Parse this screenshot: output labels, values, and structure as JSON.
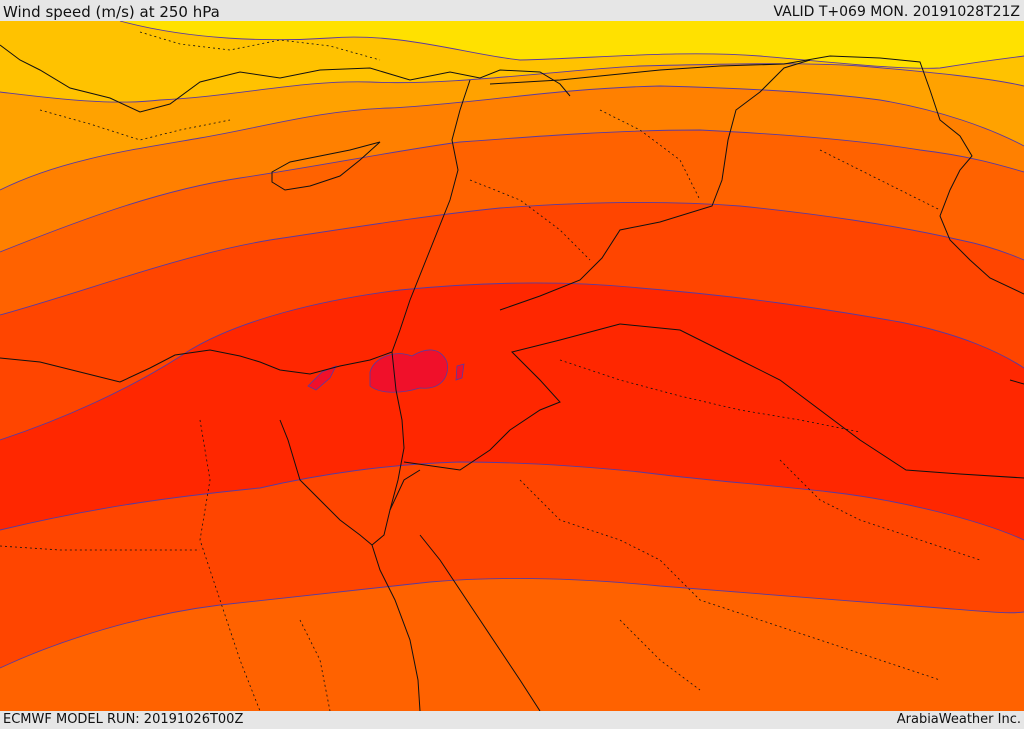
{
  "header": {
    "title": "Wind speed (m/s) at 250 hPa",
    "valid": "VALID T+069 MON. 20191028T21Z"
  },
  "footer": {
    "model_run": "ECMWF MODEL RUN: 20191026T00Z",
    "credit": "ArabiaWeather Inc."
  },
  "map": {
    "fill_colors": [
      "#ffe100",
      "#ffc200",
      "#ffa200",
      "#ff8000",
      "#ff6200",
      "#ff4500",
      "#ff2700",
      "#f0102a"
    ],
    "contour_color": "#5a3aa0",
    "border_color": "#111111"
  }
}
